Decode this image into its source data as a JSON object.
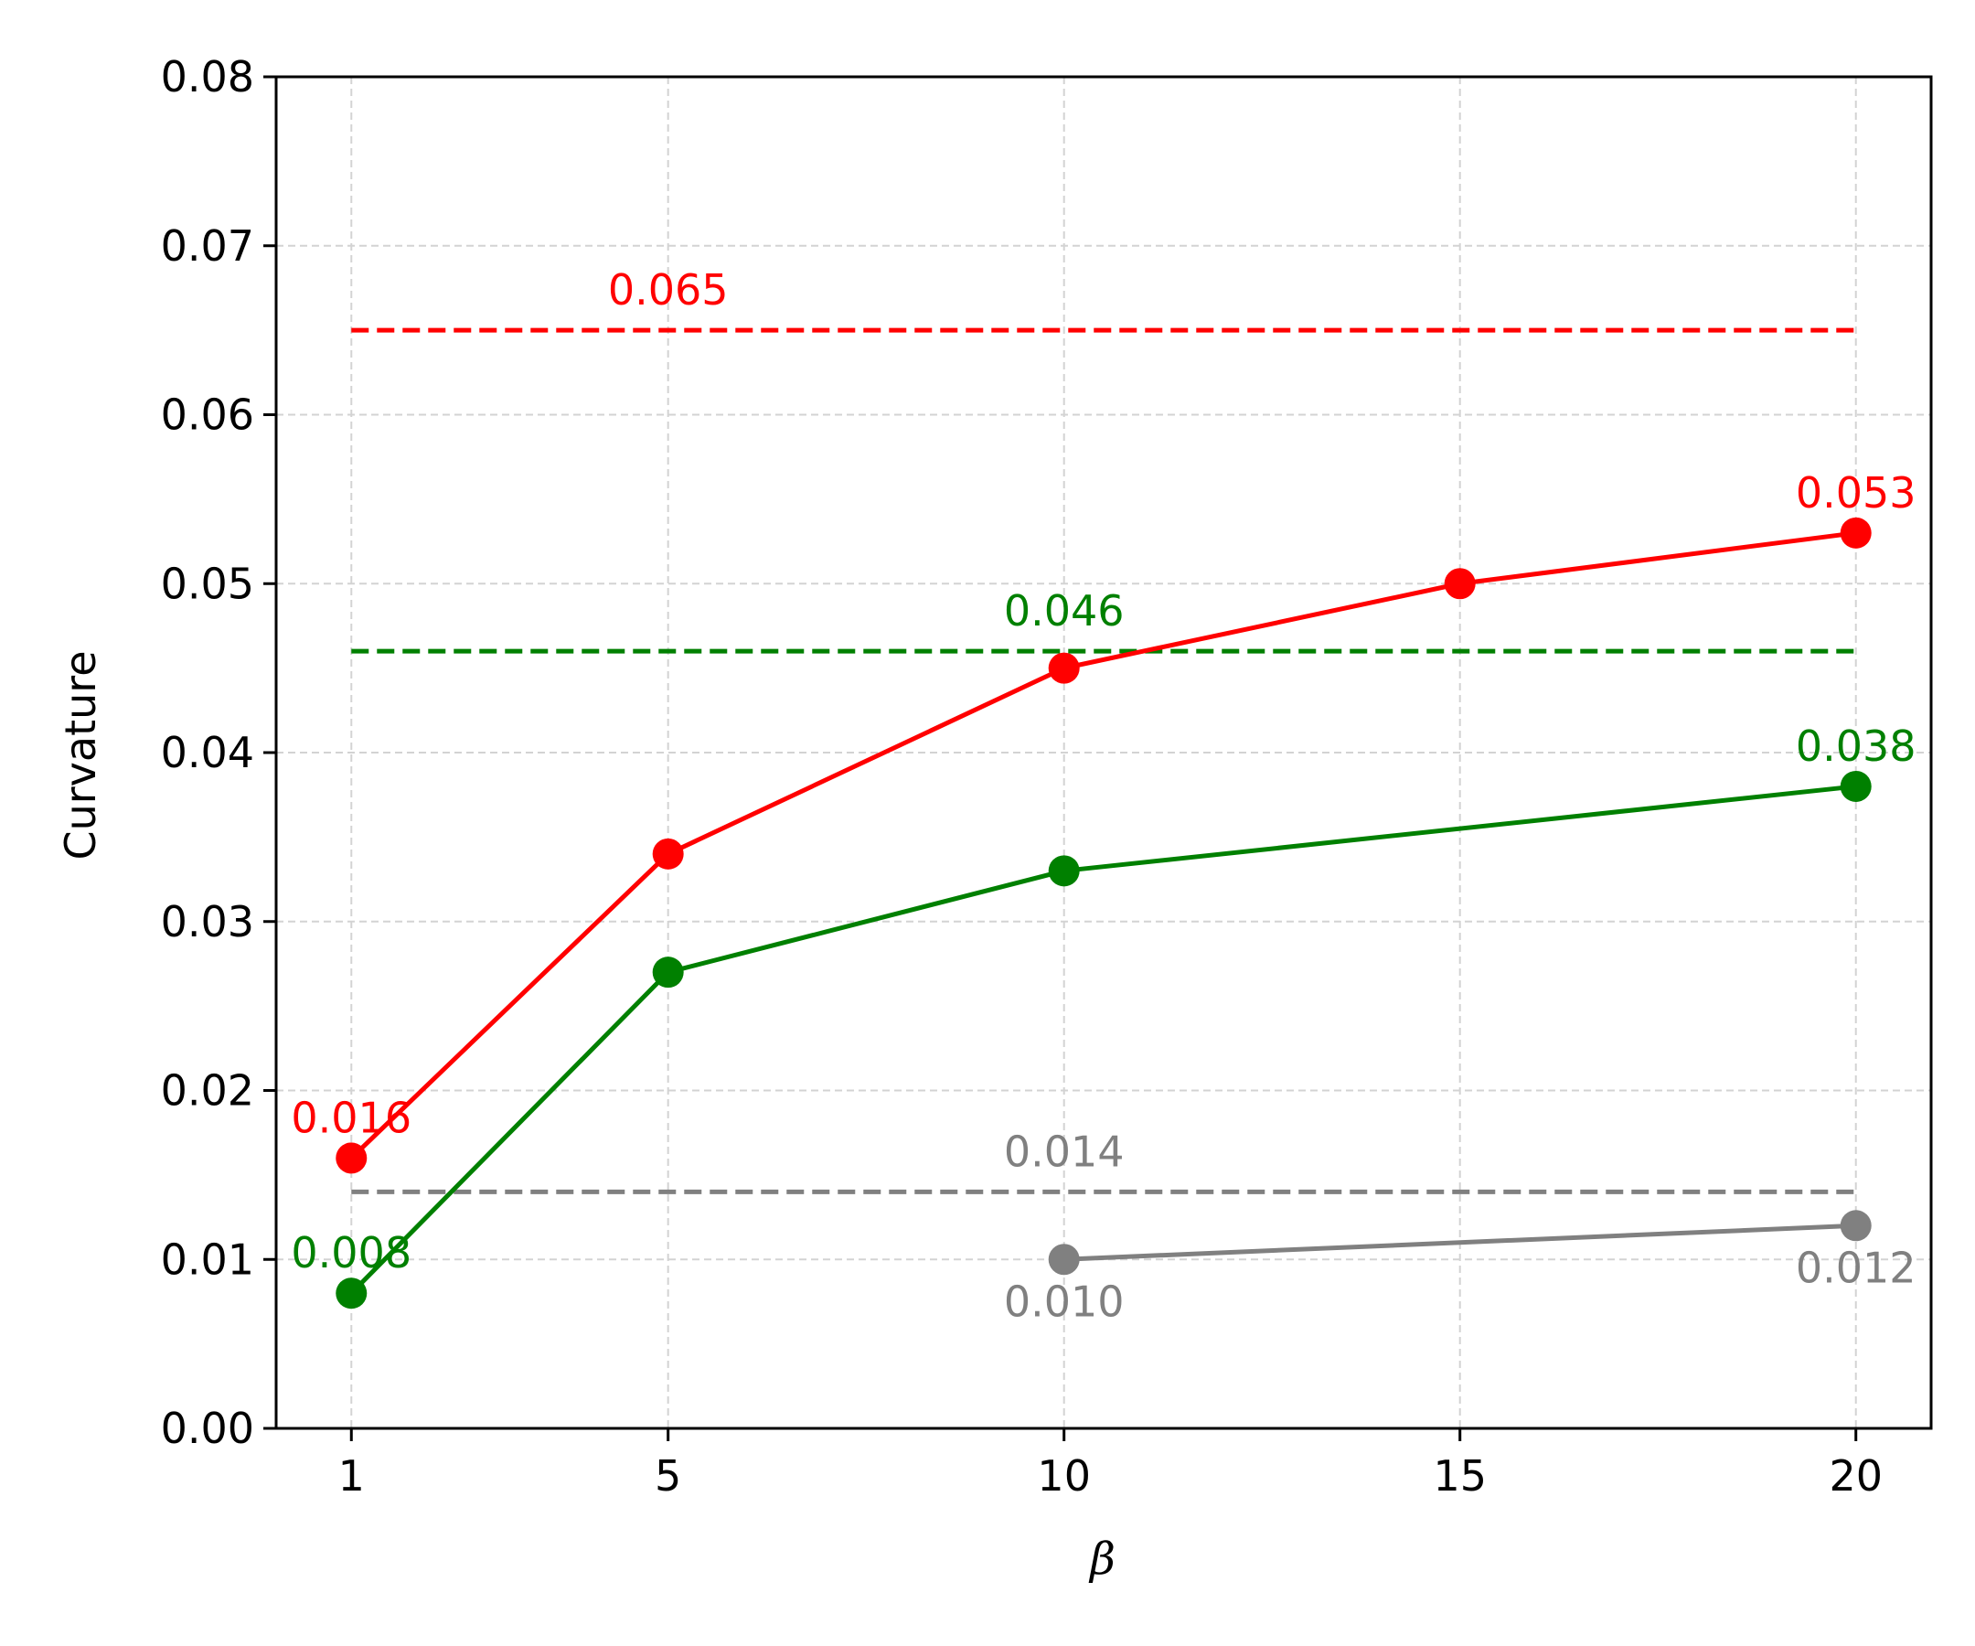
{
  "chart_data": {
    "type": "line",
    "xlabel": "β",
    "ylabel": "Curvature",
    "x_ticks": [
      "1",
      "5",
      "10",
      "15",
      "20"
    ],
    "x_tick_values": [
      1,
      5,
      10,
      15,
      20
    ],
    "y_ticks": [
      "0.00",
      "0.01",
      "0.02",
      "0.03",
      "0.04",
      "0.05",
      "0.06",
      "0.07",
      "0.08"
    ],
    "y_tick_values": [
      0.0,
      0.01,
      0.02,
      0.03,
      0.04,
      0.05,
      0.06,
      0.07,
      0.08
    ],
    "xlim": [
      0.05,
      20.95
    ],
    "ylim": [
      0.0,
      0.08
    ],
    "grid": true,
    "grid_style": "dashed",
    "legend": "none",
    "series": [
      {
        "color": "#ff0000",
        "x": [
          1,
          5,
          10,
          15,
          20
        ],
        "y": [
          0.016,
          0.034,
          0.045,
          0.05,
          0.053
        ]
      },
      {
        "color": "#008000",
        "x": [
          1,
          5,
          10,
          20
        ],
        "y": [
          0.008,
          0.027,
          0.033,
          0.038
        ]
      },
      {
        "color": "#808080",
        "x": [
          10,
          20
        ],
        "y": [
          0.01,
          0.012
        ]
      }
    ],
    "reference_lines": [
      {
        "color": "#ff0000",
        "y": 0.065,
        "x_range": [
          1,
          20
        ]
      },
      {
        "color": "#008000",
        "y": 0.046,
        "x_range": [
          1,
          20
        ]
      },
      {
        "color": "#808080",
        "y": 0.014,
        "x_range": [
          1,
          20
        ]
      }
    ],
    "annotations": [
      {
        "text": "0.016",
        "x": 1,
        "y": 0.016,
        "color": "#ff0000",
        "position": "above"
      },
      {
        "text": "0.053",
        "x": 20,
        "y": 0.053,
        "color": "#ff0000",
        "position": "above"
      },
      {
        "text": "0.008",
        "x": 1,
        "y": 0.008,
        "color": "#008000",
        "position": "above"
      },
      {
        "text": "0.038",
        "x": 20,
        "y": 0.038,
        "color": "#008000",
        "position": "above"
      },
      {
        "text": "0.010",
        "x": 10,
        "y": 0.01,
        "color": "#808080",
        "position": "below"
      },
      {
        "text": "0.012",
        "x": 20,
        "y": 0.012,
        "color": "#808080",
        "position": "below"
      },
      {
        "text": "0.065",
        "x": 5,
        "y": 0.065,
        "color": "#ff0000",
        "position": "above"
      },
      {
        "text": "0.046",
        "x": 10,
        "y": 0.046,
        "color": "#008000",
        "position": "above"
      },
      {
        "text": "0.014",
        "x": 10,
        "y": 0.014,
        "color": "#808080",
        "position": "above"
      }
    ]
  }
}
